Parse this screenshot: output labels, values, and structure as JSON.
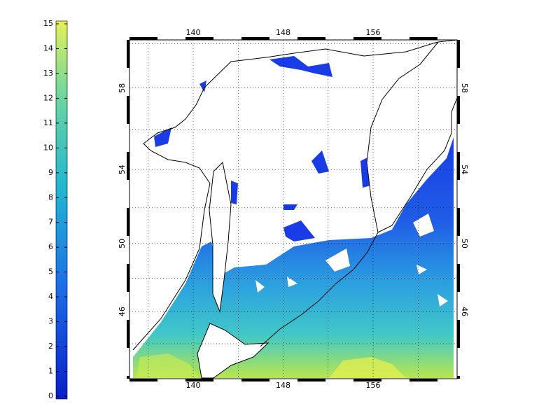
{
  "colorbar": {
    "lim": [
      0,
      15
    ],
    "ticks": [
      0,
      1,
      2,
      3,
      4,
      5,
      6,
      7,
      8,
      9,
      10,
      11,
      12,
      13,
      14,
      15
    ]
  },
  "map": {
    "projection": "mercator",
    "grid": true,
    "xlim": [
      134.33,
      163.47
    ],
    "xticks": [
      140,
      148,
      156
    ],
    "ylim": [
      41.75,
      60.17
    ],
    "yticks": [
      46,
      50,
      54,
      58
    ]
  }
}
